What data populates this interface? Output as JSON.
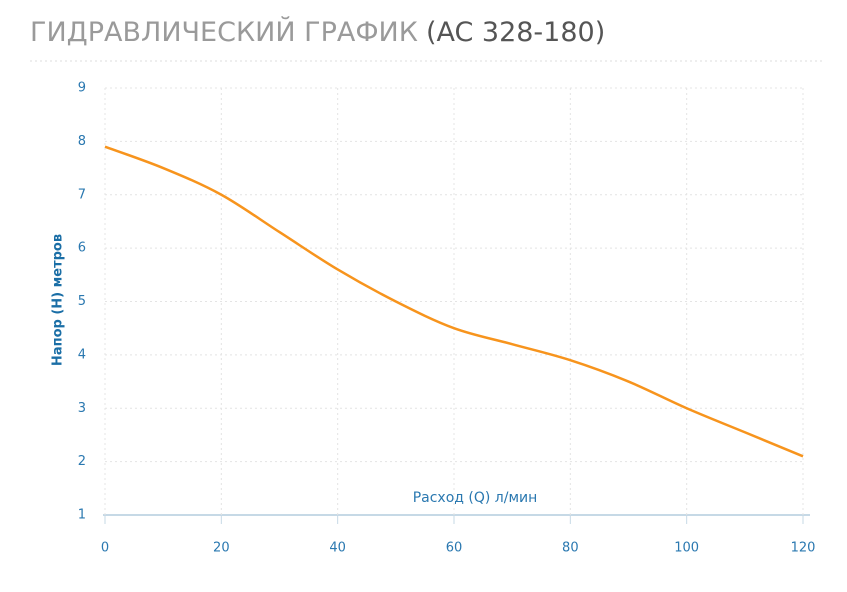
{
  "chart_data": {
    "type": "line",
    "title": "ГИДРАВЛИЧЕСКИЙ ГРАФИК",
    "model": "(AC 328-180)",
    "x_label": "Расход (Q) л/мин",
    "y_label": "Напор (H) метров",
    "x": [
      0,
      10,
      20,
      30,
      40,
      50,
      60,
      70,
      80,
      90,
      100,
      110,
      120
    ],
    "series": [
      {
        "name": "AC 328-180",
        "color": "#f7941d",
        "values": [
          7.9,
          7.5,
          7.0,
          6.3,
          5.6,
          5.0,
          4.5,
          4.2,
          3.9,
          3.5,
          3.0,
          2.55,
          2.1
        ]
      }
    ],
    "xlim": [
      0,
      120
    ],
    "xticks": [
      0,
      20,
      40,
      60,
      80,
      100,
      120
    ],
    "ylim": [
      1,
      9
    ],
    "yticks": [
      1,
      2,
      3,
      4,
      5,
      6,
      7,
      8,
      9
    ],
    "grid": true
  }
}
